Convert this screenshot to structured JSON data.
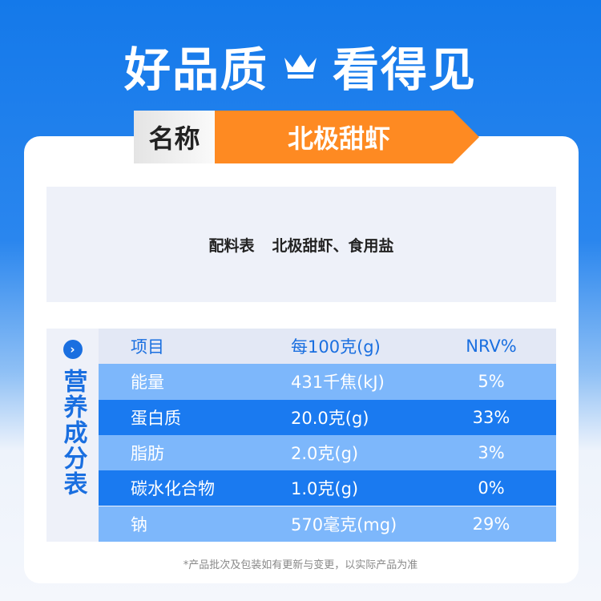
{
  "headline": {
    "left": "好品质",
    "right": "看得见",
    "icon": "crown-icon"
  },
  "name": {
    "label": "名称",
    "value": "北极甜虾"
  },
  "ingredients": {
    "label": "配料表",
    "value": "北极甜虾、食用盐"
  },
  "nutrition": {
    "side_label": "营养成分表",
    "icon": "chevron-right-circle-icon",
    "headers": [
      "项目",
      "每100克(g)",
      "NRV%"
    ],
    "rows": [
      [
        "能量",
        "431千焦(kJ)",
        "5%"
      ],
      [
        "蛋白质",
        "20.0克(g)",
        "33%"
      ],
      [
        "脂肪",
        "2.0克(g)",
        "3%"
      ],
      [
        "碳水化合物",
        "1.0克(g)",
        "0%"
      ],
      [
        "钠",
        "570毫克(mg)",
        "29%"
      ]
    ]
  },
  "footnote": "*产品批次及包装如有更新与变更，以实际产品为准",
  "colors": {
    "orange": "#fe8a22",
    "blue": "#1a7af0",
    "light_blue": "#7db7fb"
  }
}
